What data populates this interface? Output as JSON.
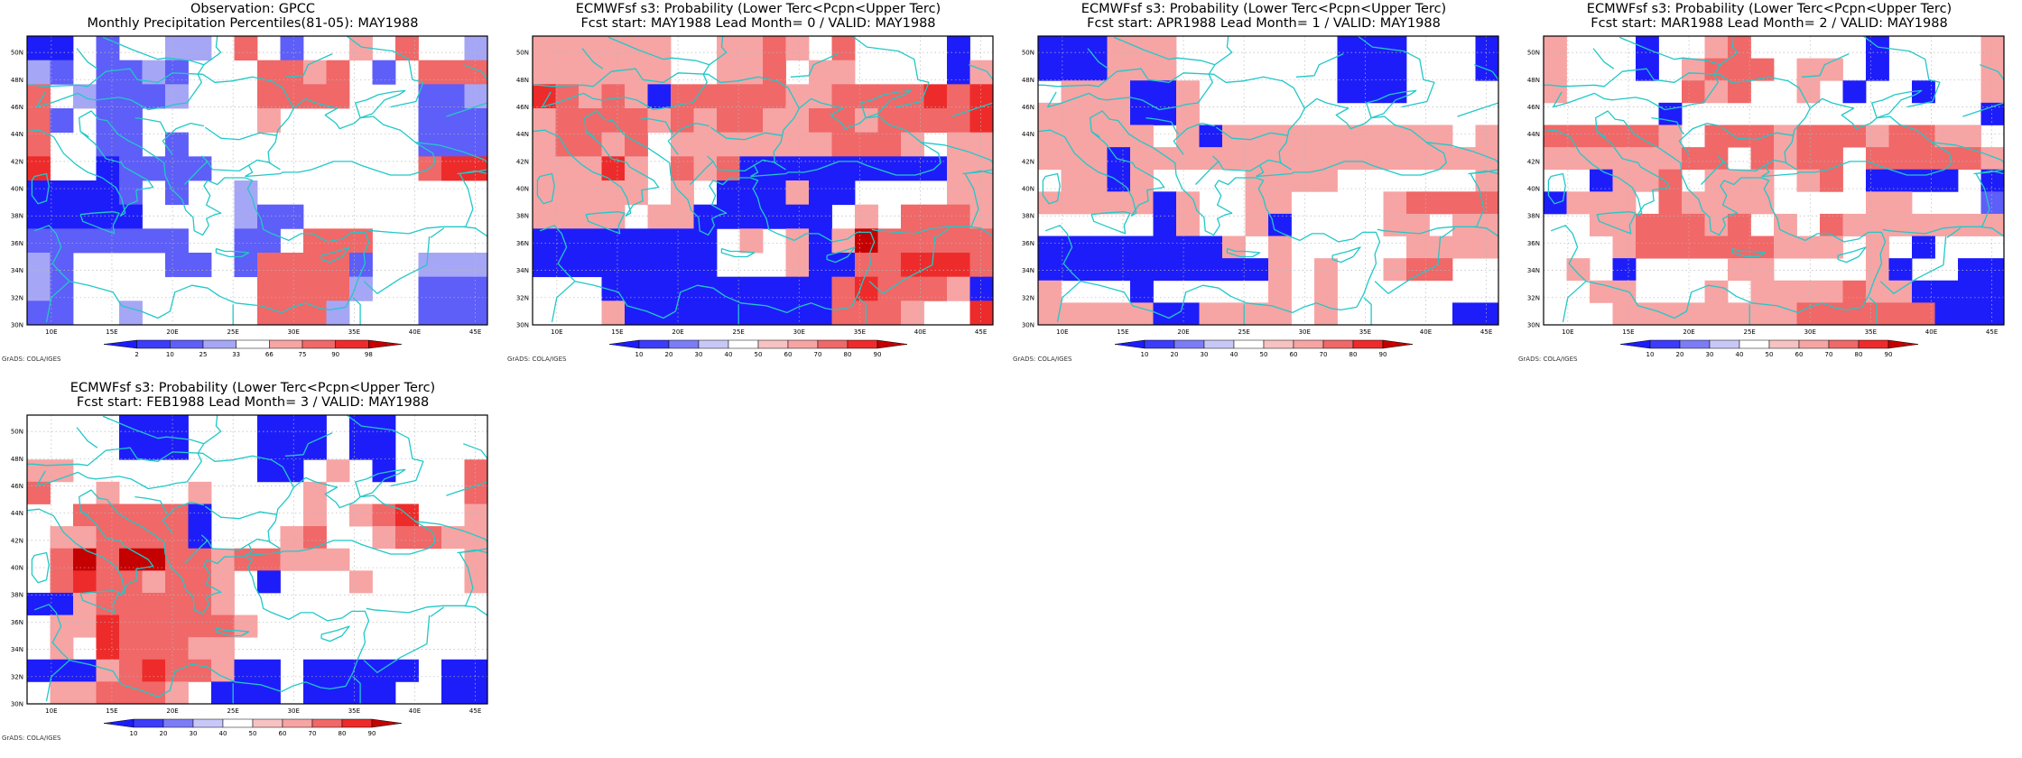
{
  "colors": {
    "coastline": "#22c8c8",
    "grid": "#b8b8b8",
    "frame": "#000000",
    "cells": {
      "B": "#1d1dfa",
      "b": "#5e5ef8",
      "l": "#a6a6f6",
      "w": "#ffffff",
      "p": "#f7a4a4",
      "m": "#f06868",
      "r": "#ee2b2b",
      "d": "#c40000"
    }
  },
  "map": {
    "lat_labels": [
      "50N",
      "48N",
      "46N",
      "44N",
      "42N",
      "40N",
      "38N",
      "36N",
      "34N",
      "32N",
      "30N"
    ],
    "lon_labels": [
      "10E",
      "15E",
      "20E",
      "25E",
      "30E",
      "35E",
      "40E",
      "45E"
    ]
  },
  "legends": {
    "percentile": {
      "labels": [
        "2",
        "10",
        "25",
        "33",
        "66",
        "75",
        "90",
        "98"
      ],
      "colors": [
        "#1d1dfa",
        "#3c3cf9",
        "#5e5ef8",
        "#a6a6f6",
        "#ffffff",
        "#f7a4a4",
        "#f06868",
        "#ee2b2b",
        "#c40000"
      ]
    },
    "probability": {
      "labels": [
        "10",
        "20",
        "30",
        "40",
        "50",
        "60",
        "70",
        "80",
        "90"
      ],
      "colors": [
        "#1d1dfa",
        "#3c3cf9",
        "#7c7cf7",
        "#c8c8f8",
        "#ffffff",
        "#f7c2c2",
        "#f7a4a4",
        "#f06868",
        "#ee2b2b",
        "#c40000"
      ]
    }
  },
  "credit": "GrADS: COLA/IGES",
  "panels": [
    {
      "id": "obs",
      "title1": "Observation: GPCC",
      "title2": "Monthly Precipitation Percentiles(81-05): MAY1988",
      "legend": "percentile",
      "grid": [
        "BBwbwwllwmwbwwpwmwwl",
        "lbwbblbwwwmmpmwbwmmm",
        "mwlbbblwwwmmmmwwwbbl",
        "mbwbbwwwwwpwwwwwwbbb",
        "mwwbbwbwwwwwwwwwwbbb",
        "rwwBbbbbwwwwwwwwwmrr",
        "BBBBbwbwwlwwwwwwwwww",
        "BBBBBwwwwlbbwwwwwwww",
        "bbbbbbbwwbbwmmmwwwww",
        "lbwwwwbbwbmmmmbwwlll",
        "lbwwwwwwwwmmmmlwwbbb",
        "bbwwlwwwwwmmmlwwwbbb"
      ]
    },
    {
      "id": "lead0",
      "title1": "ECMWFsf s3: Probability (Lower Terc<Pcpn<Upper Terc)",
      "title2": "Fcst start: MAY1988  Lead Month= 0 / VALID: MAY1988",
      "legend": "probability",
      "grid": [
        "ppppppwwppmpwmwwwwBw",
        "ppppppwwppmwppwwwwBp",
        "rmpmpBmmmmmppmmmmrmr",
        "pmmmmpmpmmppmmpmmmmr",
        "pmmpmwpppppppmmmpwpp",
        "ppprpwmpmBBBBBBBBBpp",
        "pppppwpwBBBpBBwwwwpp",
        "ppppwppBBBBBBwpwmmmp",
        "BBBBBBBBwpwpBpdmmmmm",
        "BBBBBBBBwwwpBBmmrrrm",
        "wwwBBBBBBBBBBmrmmmpB",
        "wwwpBBBBBBBBBmmmpwwr"
      ]
    },
    {
      "id": "lead1",
      "title1": "ECMWFsf s3: Probability (Lower Terc<Pcpn<Upper Terc)",
      "title2": "Fcst start: APR1988  Lead Month= 1 / VALID: MAY1988",
      "legend": "probability",
      "grid": [
        "BBBpppwwwwwwwBBBwwwB",
        "BBBpppwwwwwwwBBBwwwB",
        "wpppBBpwwwwwwBBBwwww",
        "ppppBBpwwwwwwwwwwwww",
        "pppppwpBppppppppppwp",
        "pppBpppppppppppppppp",
        "wppBpwwwwppppwwwwwwp",
        "pppppBpwwppwwwwpmmmm",
        "wwwwwBpwwpBwwwwppwpp",
        "BBBBBBBBpwpwwwwwpppp",
        "BBBBBBBBBBpwpwwpmmww",
        "pwwwBwwwwwpwpwwwwwww",
        "pppppBBppppwpwwwwwBB"
      ]
    },
    {
      "id": "lead2",
      "title1": "ECMWFsf s3: Probability (Lower Terc<Pcpn<Upper Terc)",
      "title2": "Fcst start: MAR1988  Lead Month= 2 / VALID: MAY1988",
      "legend": "probability",
      "grid": [
        "pwwwBwwpmwwwwwBwwwwp",
        "pwwwBwpmmmwppwBwwwwp",
        "pwwwwwmpmwwpwBwwBwwp",
        "wwwwwBwwwwwwwwwwwwwB",
        "mmmmmpwmmmpmmmpmmppw",
        "ppppppmmwmpmmwmmmmmp",
        "wwBppmwpppwpmwBBBBwB",
        "Bpppwmppppwwwwppwwwb",
        "wwppmmmpmwpwmppppppp",
        "wwwpmmmmmmpppwpwBwww",
        "wpwBwwwwppwwwwpBwwBB",
        "wwppwwwpwppppmppBBBB",
        "wwwppppppppmmmmmmBBB"
      ]
    },
    {
      "id": "lead3",
      "title1": "ECMWFsf s3: Probability (Lower Terc<Pcpn<Upper Terc)",
      "title2": "Fcst start: FEB1988  Lead Month= 3 / VALID: MAY1988",
      "legend": "probability",
      "grid": [
        "wwwwBBBwwwBBBwBBwwww",
        "wwwwBBBwwwBBBwBBwwww",
        "ppwwwwwwwwBBwpwBwwwm",
        "mwwpwwwpwwwwpwwwwwwm",
        "wwmmmmmBwwwwpwpmrwwp",
        "wppmmmmBwwwpmwwpmmpp",
        "wmdmddmmpmmpppwwwwwp",
        "wmrmmpmmpwBwwwpwwwwp",
        "BBpmmmmmpwwwwwwwwwww",
        "wpprmmmmmpwwwwwwwwww",
        "wpwrmmmppwwwwwwwwwww",
        "BBBpmrmmpBBwBBBBBwBB",
        "wppmmmpwBBBwBBBBwwBB"
      ]
    }
  ]
}
